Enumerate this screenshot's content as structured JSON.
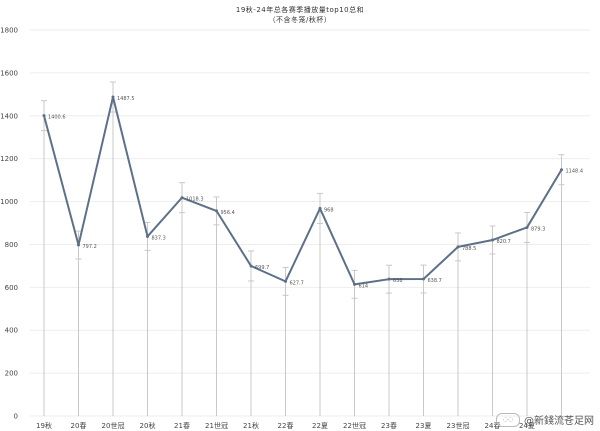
{
  "title": "19秋-24年总各赛季播放量top10总和",
  "subtitle": "（不含冬笼/秋杯）",
  "watermark": "@新錢流苍足网",
  "colors": {
    "line": "#5e7089",
    "errorbar": "#c8c8c8",
    "grid": "#eeeeee",
    "text": "#444444"
  },
  "chart_data": {
    "type": "line",
    "title": "19秋-24年总各赛季播放量top10总和",
    "subtitle": "（不含冬笼/秋杯）",
    "categories": [
      "19秋",
      "20春",
      "20世冠",
      "20秋",
      "21春",
      "21世冠",
      "21秋",
      "22春",
      "22夏",
      "22世冠",
      "23春",
      "23夏",
      "23世冠",
      "24春",
      "24夏",
      "24世冠"
    ],
    "x_tick_labels": [
      "19秋",
      "20春",
      "20世冠",
      "20秋",
      "21春",
      "21世冠",
      "21秋",
      "22春",
      "22夏",
      "22世冠",
      "23春",
      "23夏",
      "23世冠",
      "24春",
      "24夏",
      ""
    ],
    "series": [
      {
        "values": [
          1400.6,
          797.2,
          1487.5,
          837.3,
          1018.3,
          956.4,
          699.7,
          627.7,
          968,
          614,
          638,
          638.7,
          788.5,
          820.7,
          879.3,
          1148.4
        ],
        "labels": [
          "1400.6",
          "797.2",
          "1487.5",
          "837.3",
          "1018.3",
          "956.4",
          "699.7",
          "627.7",
          "968",
          "614",
          "638",
          "638.7",
          "788.5",
          "820.7",
          "879.3",
          "1148.4"
        ],
        "error": [
          70,
          65,
          70,
          65,
          70,
          65,
          70,
          65,
          70,
          65,
          65,
          65,
          65,
          65,
          70,
          70
        ]
      }
    ],
    "yticks": [
      0,
      200,
      400,
      600,
      800,
      1000,
      1200,
      1400,
      1600,
      1800
    ],
    "ylim": [
      0,
      1800
    ],
    "grid": true,
    "legend": "none"
  }
}
